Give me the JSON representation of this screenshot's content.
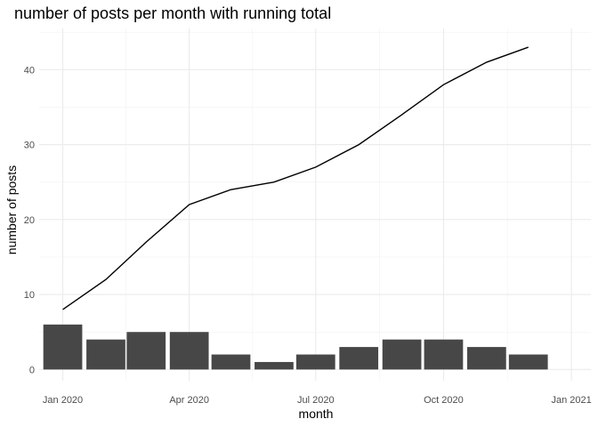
{
  "chart_data": {
    "type": "bar",
    "title": "number of posts per month with running total",
    "xlabel": "month",
    "ylabel": "number of posts",
    "ylim": [
      -1.5,
      45.5
    ],
    "yticks": [
      0,
      10,
      20,
      30,
      40
    ],
    "xticks": [
      {
        "date": "2020-01-01",
        "label": "Jan 2020"
      },
      {
        "date": "2020-04-01",
        "label": "Apr 2020"
      },
      {
        "date": "2020-07-01",
        "label": "Jul 2020"
      },
      {
        "date": "2020-10-01",
        "label": "Oct 2020"
      },
      {
        "date": "2021-01-01",
        "label": "Jan 2021"
      }
    ],
    "xlim": [
      "2019-12-15",
      "2021-01-15"
    ],
    "grid": true,
    "categories": [
      "2020-01-01",
      "2020-02-01",
      "2020-03-01",
      "2020-04-01",
      "2020-05-01",
      "2020-06-01",
      "2020-07-01",
      "2020-08-01",
      "2020-09-01",
      "2020-10-01",
      "2020-11-01",
      "2020-12-01"
    ],
    "series": [
      {
        "type": "bar",
        "values": [
          6,
          4,
          5,
          5,
          2,
          1,
          2,
          3,
          4,
          4,
          3,
          2
        ]
      },
      {
        "type": "line",
        "values": [
          8,
          12,
          17,
          22,
          24,
          25,
          27,
          30,
          34,
          38,
          41,
          43
        ]
      }
    ]
  }
}
